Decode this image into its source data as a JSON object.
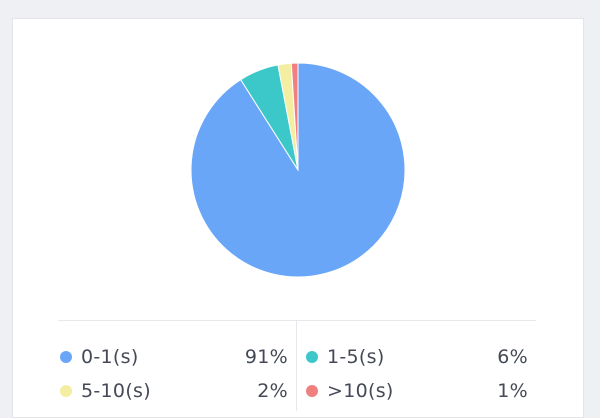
{
  "chart_data": {
    "type": "pie",
    "title": "",
    "slices": [
      {
        "label": "0-1(s)",
        "value": 91,
        "display": "91%",
        "color": "#6aa6f8"
      },
      {
        "label": "1-5(s)",
        "value": 6,
        "display": "6%",
        "color": "#3cc8c8"
      },
      {
        "label": "5-10(s)",
        "value": 2,
        "display": "2%",
        "color": "#f4eea2"
      },
      {
        "label": ">10(s)",
        "value": 1,
        "display": "1%",
        "color": "#f07f80"
      }
    ],
    "legend_position": "bottom"
  }
}
